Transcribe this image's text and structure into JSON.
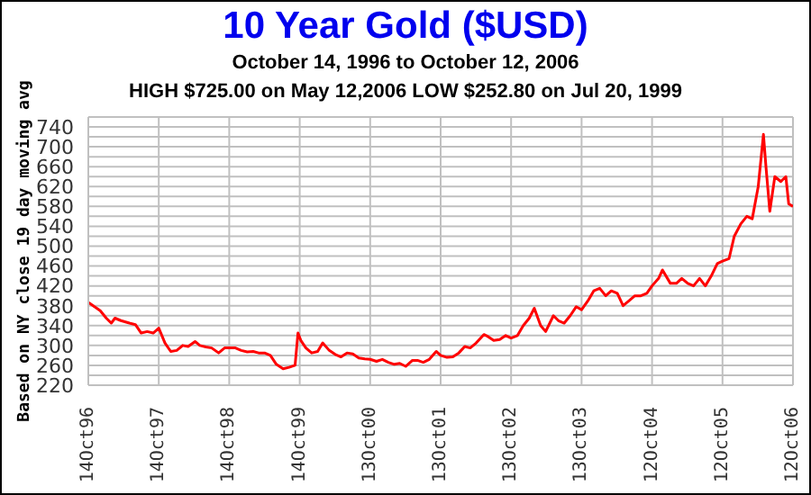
{
  "chart_data": {
    "type": "line",
    "title": "10 Year Gold ($USD)",
    "subtitle": "October 14, 1996 to October 12, 2006",
    "annotations": [
      "HIGH $725.00 on May 12,2006 LOW $252.80 on Jul 20, 1999"
    ],
    "ylabel": "Based on NY close 19 day moving avg",
    "x": [
      "1996-10-14",
      "1996-11-15",
      "1996-12-15",
      "1997-01-15",
      "1997-02-10",
      "1997-03-01",
      "1997-04-01",
      "1997-05-15",
      "1997-06-15",
      "1997-07-15",
      "1997-08-15",
      "1997-09-15",
      "1997-10-14",
      "1997-11-15",
      "1997-12-15",
      "1998-01-15",
      "1998-02-15",
      "1998-03-15",
      "1998-04-20",
      "1998-05-15",
      "1998-06-15",
      "1998-07-15",
      "1998-08-20",
      "1998-09-20",
      "1998-10-14",
      "1998-11-15",
      "1998-12-15",
      "1999-01-15",
      "1999-02-15",
      "1999-03-15",
      "1999-04-15",
      "1999-05-15",
      "1999-06-15",
      "1999-07-20",
      "1999-08-20",
      "1999-09-20",
      "1999-10-05",
      "1999-10-20",
      "1999-11-15",
      "1999-12-15",
      "2000-01-15",
      "2000-02-10",
      "2000-03-15",
      "2000-04-15",
      "2000-05-15",
      "2000-06-15",
      "2000-07-15",
      "2000-08-15",
      "2000-09-15",
      "2000-10-13",
      "2000-11-15",
      "2000-12-15",
      "2001-01-15",
      "2001-02-15",
      "2001-03-15",
      "2001-04-15",
      "2001-05-20",
      "2001-06-15",
      "2001-07-15",
      "2001-08-15",
      "2001-09-20",
      "2001-10-13",
      "2001-11-15",
      "2001-12-15",
      "2002-01-15",
      "2002-02-15",
      "2002-03-15",
      "2002-04-15",
      "2002-05-25",
      "2002-06-15",
      "2002-07-15",
      "2002-08-15",
      "2002-09-15",
      "2002-10-13",
      "2002-11-15",
      "2002-12-15",
      "2003-01-15",
      "2003-02-10",
      "2003-03-15",
      "2003-04-10",
      "2003-05-20",
      "2003-06-15",
      "2003-07-15",
      "2003-08-15",
      "2003-09-15",
      "2003-10-13",
      "2003-11-15",
      "2003-12-15",
      "2004-01-15",
      "2004-02-15",
      "2004-03-15",
      "2004-04-15",
      "2004-05-15",
      "2004-06-15",
      "2004-07-15",
      "2004-08-15",
      "2004-09-15",
      "2004-10-12",
      "2004-11-15",
      "2004-12-05",
      "2005-01-15",
      "2005-02-15",
      "2005-03-15",
      "2005-04-15",
      "2005-05-15",
      "2005-06-15",
      "2005-07-15",
      "2005-08-15",
      "2005-09-15",
      "2005-10-12",
      "2005-11-15",
      "2005-12-12",
      "2006-01-15",
      "2006-02-15",
      "2006-03-15",
      "2006-04-15",
      "2006-05-12",
      "2006-05-25",
      "2006-06-14",
      "2006-07-10",
      "2006-08-10",
      "2006-09-05",
      "2006-09-20",
      "2006-10-12"
    ],
    "series": [
      {
        "color": "#ff0000",
        "values": [
          387,
          378,
          370,
          355,
          345,
          355,
          350,
          345,
          342,
          325,
          328,
          325,
          335,
          305,
          288,
          290,
          300,
          298,
          308,
          300,
          297,
          295,
          285,
          295,
          295,
          295,
          290,
          287,
          288,
          285,
          285,
          280,
          262,
          253,
          256,
          260,
          325,
          310,
          295,
          285,
          288,
          305,
          290,
          282,
          277,
          285,
          283,
          275,
          273,
          272,
          268,
          272,
          266,
          262,
          264,
          258,
          270,
          270,
          266,
          272,
          288,
          280,
          276,
          277,
          285,
          298,
          295,
          305,
          322,
          318,
          310,
          312,
          320,
          315,
          320,
          340,
          355,
          375,
          340,
          328,
          360,
          350,
          345,
          360,
          378,
          372,
          390,
          410,
          415,
          400,
          410,
          405,
          380,
          390,
          400,
          400,
          405,
          420,
          435,
          452,
          425,
          425,
          435,
          425,
          420,
          435,
          420,
          440,
          465,
          470,
          475,
          520,
          545,
          560,
          555,
          620,
          725,
          660,
          570,
          640,
          630,
          640,
          585,
          580
        ]
      }
    ],
    "xlim": [
      "1996-10-14",
      "2006-10-12"
    ],
    "xticks": [
      {
        "value": "1996-10-14",
        "label": "14Oct96"
      },
      {
        "value": "1997-10-14",
        "label": "14Oct97"
      },
      {
        "value": "1998-10-14",
        "label": "14Oct98"
      },
      {
        "value": "1999-10-14",
        "label": "14Oct99"
      },
      {
        "value": "2000-10-13",
        "label": "13Oct00"
      },
      {
        "value": "2001-10-13",
        "label": "13Oct01"
      },
      {
        "value": "2002-10-13",
        "label": "13Oct02"
      },
      {
        "value": "2003-10-13",
        "label": "13Oct03"
      },
      {
        "value": "2004-10-12",
        "label": "12Oct04"
      },
      {
        "value": "2005-10-12",
        "label": "12Oct05"
      },
      {
        "value": "2006-10-12",
        "label": "12Oct06"
      }
    ],
    "ylim": [
      220,
      760
    ],
    "yticks": [
      220,
      {
        "value": 240,
        "label": null
      },
      260,
      {
        "value": 280,
        "label": null
      },
      300,
      {
        "value": 320,
        "label": null
      },
      340,
      {
        "value": 360,
        "label": null
      },
      380,
      {
        "value": 400,
        "label": null
      },
      420,
      {
        "value": 440,
        "label": null
      },
      460,
      {
        "value": 480,
        "label": null
      },
      500,
      {
        "value": 520,
        "label": null
      },
      540,
      {
        "value": 560,
        "label": null
      },
      580,
      {
        "value": 600,
        "label": null
      },
      620,
      {
        "value": 640,
        "label": null
      },
      660,
      {
        "value": 680,
        "label": null
      },
      700,
      {
        "value": 720,
        "label": null
      },
      740,
      {
        "value": 760,
        "label": null
      }
    ],
    "grid": true
  }
}
